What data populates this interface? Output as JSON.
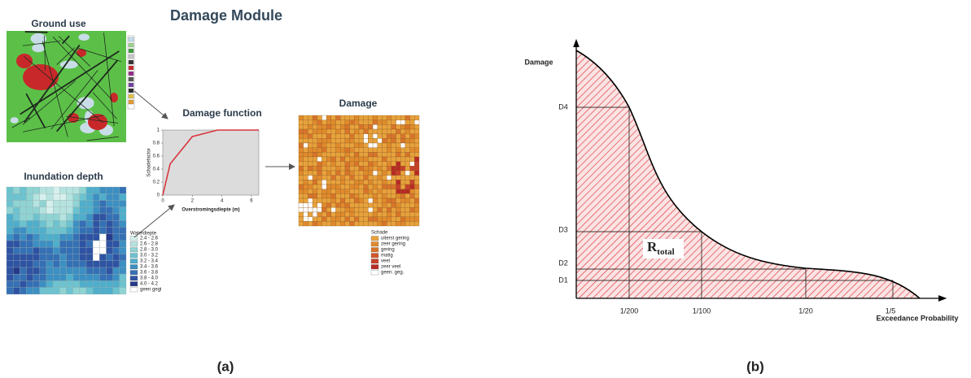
{
  "panel_a": {
    "title": "Damage Module",
    "label": "(a)",
    "ground_use": {
      "title": "Ground use"
    },
    "inundation": {
      "title": "Inundation depth",
      "legend_title": "Waterdiepte",
      "legend": [
        {
          "label": "2.4 - 2.6",
          "color": "#d6f0ee"
        },
        {
          "label": "2.6 - 2.8",
          "color": "#b5e3df"
        },
        {
          "label": "2.8 - 3.0",
          "color": "#8fd3d3"
        },
        {
          "label": "3.0 - 3.2",
          "color": "#6cc3cf"
        },
        {
          "label": "3.2 - 3.4",
          "color": "#4faecb"
        },
        {
          "label": "3.4 - 3.6",
          "color": "#3c8fc2"
        },
        {
          "label": "3.6 - 3.8",
          "color": "#3570b5"
        },
        {
          "label": "3.8 - 4.0",
          "color": "#2f53a3"
        },
        {
          "label": "4.0 - 4.2",
          "color": "#263a8a"
        },
        {
          "label": "geen gegi",
          "color": "#ffffff"
        }
      ]
    },
    "damage_function": {
      "title": "Damage function",
      "y_label": "Schadefactor",
      "x_label": "Overstromingsdiepte (m)",
      "xlim": [
        0,
        6.5
      ],
      "ylim": [
        0,
        1
      ],
      "xticks": [
        0,
        2,
        4,
        6
      ],
      "yticks": [
        0,
        0.2,
        0.4,
        0.6,
        0.8,
        1
      ],
      "x": [
        0,
        0.5,
        2,
        3.7,
        6.5
      ],
      "y": [
        0,
        0.48,
        0.9,
        1,
        1
      ]
    },
    "damage_map": {
      "title": "Damage",
      "legend_title": "Schade",
      "legend": [
        {
          "label": "uiterst gering",
          "color": "#e8a23c"
        },
        {
          "label": "zeer gering",
          "color": "#e08a2c"
        },
        {
          "label": "gering",
          "color": "#d8742a"
        },
        {
          "label": "matig",
          "color": "#d0572a"
        },
        {
          "label": "veel",
          "color": "#c8402a"
        },
        {
          "label": "zeer veel",
          "color": "#b82a24"
        },
        {
          "label": "geen. geg.",
          "color": "#ffffff"
        }
      ]
    }
  },
  "panel_b": {
    "label": "(b)",
    "y_label": "Damage",
    "x_label": "Exceedance Probability",
    "levels": [
      "D1",
      "D2",
      "D3",
      "D4"
    ],
    "probabilities": [
      "1/200",
      "1/100",
      "1/20",
      "1/5"
    ],
    "area_label": "R",
    "area_subscript": "total"
  }
}
